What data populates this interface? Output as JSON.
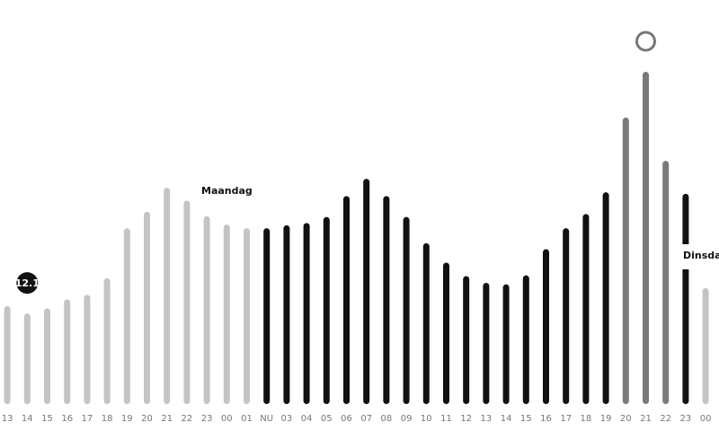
{
  "chart_data": {
    "type": "bar",
    "categories": [
      "13",
      "14",
      "15",
      "16",
      "17",
      "18",
      "19",
      "20",
      "21",
      "22",
      "23",
      "00",
      "01",
      "NU",
      "03",
      "04",
      "05",
      "06",
      "07",
      "08",
      "09",
      "10",
      "11",
      "12",
      "13",
      "14",
      "15",
      "16",
      "17",
      "18",
      "19",
      "20",
      "21",
      "22",
      "23",
      "00"
    ],
    "values": [
      13.1,
      12.1,
      12.8,
      14.0,
      14.6,
      16.8,
      23.5,
      25.7,
      28.9,
      27.2,
      25.1,
      24.0,
      23.5,
      23.5,
      23.9,
      24.2,
      25.0,
      27.8,
      30.1,
      27.8,
      25.0,
      21.5,
      18.9,
      17.1,
      16.2,
      16,
      17.2,
      20.7,
      23.5,
      25.4,
      28.3,
      38.3,
      44.4,
      32.5,
      28.1,
      15.5
    ],
    "colors": [
      "#c4c4c4",
      "#c4c4c4",
      "#c4c4c4",
      "#c4c4c4",
      "#c4c4c4",
      "#c4c4c4",
      "#c4c4c4",
      "#c4c4c4",
      "#c4c4c4",
      "#c4c4c4",
      "#c4c4c4",
      "#c4c4c4",
      "#c4c4c4",
      "#111111",
      "#111111",
      "#111111",
      "#111111",
      "#111111",
      "#111111",
      "#111111",
      "#111111",
      "#111111",
      "#111111",
      "#111111",
      "#111111",
      "#111111",
      "#111111",
      "#111111",
      "#111111",
      "#111111",
      "#111111",
      "#7a7a7a",
      "#7a7a7a",
      "#7a7a7a",
      "#111111",
      "#c4c4c4"
    ],
    "ylim": [
      0,
      54
    ],
    "annotations": [
      "Maandag",
      "Dinsdag"
    ]
  }
}
